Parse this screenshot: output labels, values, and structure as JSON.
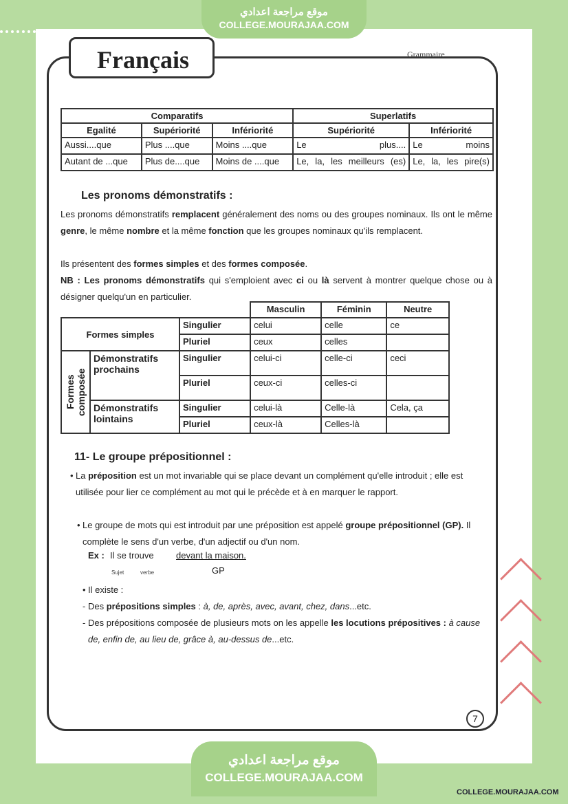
{
  "header": {
    "site_ar": "موقع مراجعة اعدادي",
    "site_url": "COLLEGE.MOURAJAA.COM",
    "title": "Français",
    "section": "Grammaire"
  },
  "comparison_table": {
    "groups": [
      "Comparatifs",
      "Superlatifs"
    ],
    "columns": [
      "Egalité",
      "Supériorité",
      "Infériorité",
      "Supériorité",
      "Infériorité"
    ],
    "rows": [
      [
        "Aussi....que",
        "Plus ....que",
        "Moins ....que",
        "Le plus....",
        "Le moins"
      ],
      [
        "Autant de ...que",
        "Plus de....que",
        "Moins de ....que",
        "Le, la, les meilleurs (es)",
        "Le, la, les pire(s)"
      ]
    ]
  },
  "demonstratives": {
    "heading": "Les pronoms démonstratifs :",
    "paragraphs": [
      [
        "Les pronoms démonstratifs ",
        {
          "b": "remplacent"
        },
        " généralement des noms ou des groupes nominaux. Ils ont le même ",
        {
          "b": "genre"
        },
        ", le même ",
        {
          "b": "nombre"
        },
        " et la même ",
        {
          "b": "fonction"
        },
        " que les groupes nominaux qu'ils remplacent."
      ],
      [
        "Ils présentent des ",
        {
          "b": "formes simples"
        },
        " et des ",
        {
          "b": "formes composée"
        },
        "."
      ],
      [
        {
          "b": "NB : Les pronoms démonstratifs"
        },
        " qui s'emploient avec ",
        {
          "b": "ci"
        },
        " ou ",
        {
          "b": "là"
        },
        " servent à montrer quelque chose ou à désigner quelqu'un en particulier."
      ]
    ],
    "table": {
      "columns": [
        "Masculin",
        "Féminin",
        "Neutre"
      ],
      "simple": {
        "label": "Formes simples",
        "rows": [
          {
            "number": "Singulier",
            "cells": [
              "celui",
              "celle",
              "ce"
            ]
          },
          {
            "number": "Pluriel",
            "cells": [
              "ceux",
              "celles",
              null
            ]
          }
        ]
      },
      "compound": {
        "label": "Formes composée",
        "groups": [
          {
            "label": "Démonstratifs prochains",
            "rows": [
              {
                "number": "Singulier",
                "cells": [
                  "celui-ci",
                  "celle-ci",
                  "ceci"
                ]
              },
              {
                "number": "Pluriel",
                "cells": [
                  "ceux-ci",
                  "celles-ci",
                  null
                ]
              }
            ]
          },
          {
            "label": "Démonstratifs lointains",
            "rows": [
              {
                "number": "Singulier",
                "cells": [
                  "celui-là",
                  "Celle-là",
                  "Cela, ça"
                ]
              },
              {
                "number": "Pluriel",
                "cells": [
                  "ceux-là",
                  "Celles-là",
                  null
                ]
              }
            ]
          }
        ]
      }
    }
  },
  "prepositional": {
    "heading": "11- Le groupe prépositionnel :",
    "bullets": [
      [
        "La ",
        {
          "b": "préposition"
        },
        " est un mot invariable qui se place devant un complément qu'elle introduit ; elle est utilisée pour lier ce complément au mot qui le précède et à en marquer le rapport."
      ],
      [
        "Le groupe de mots qui est introduit par une préposition est appelé ",
        {
          "b": "groupe prépositionnel (GP)."
        },
        " Il complète le sens d'un verbe, d'un adjectif ou d'un nom."
      ]
    ],
    "example": {
      "label": "Ex :",
      "text": "Il se trouve",
      "gp": "devant la maison.",
      "subject_label": "Sujet",
      "verb_label": "verbe",
      "gp_label": "GP"
    },
    "exists": "Il existe :",
    "types": [
      [
        "Des ",
        {
          "b": "prépositions simples"
        },
        " : ",
        {
          "i": "à, de, après, avec, avant, chez, dans"
        },
        "...etc."
      ],
      [
        "Des prépositions composée de plusieurs mots on les appelle ",
        {
          "b": "les locutions prépositives : "
        },
        {
          "i": "à cause de, enfin de, au lieu de, grâce à, au-dessus de"
        },
        "...etc."
      ]
    ]
  },
  "page_number": "7",
  "footer": {
    "site_ar": "موقع مراجعة اعدادي",
    "site_url": "COLLEGE.MOURAJAA.COM",
    "logo_text": "COLLEGE.MOURAJAA.COM"
  }
}
